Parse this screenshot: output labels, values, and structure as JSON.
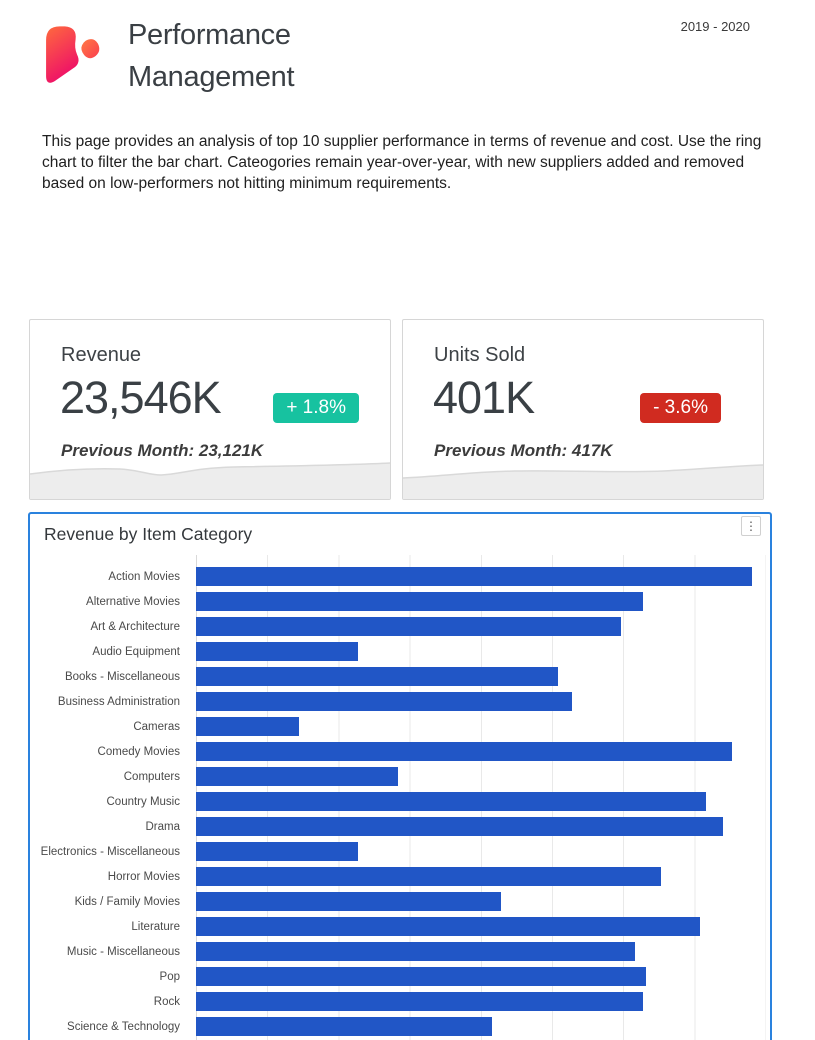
{
  "header": {
    "title": "Performance Management",
    "date_range": "2019 - 2020",
    "logo_icon": "brand-blob-logo",
    "logo_colors": {
      "top": "#ff6a3d",
      "bottom": "#ee0f68"
    }
  },
  "description": "This page provides an analysis of top 10 supplier performance in terms of revenue and cost. Use the ring chart to filter the bar chart. Cateogories remain year-over-year, with new suppliers added and removed based on low-performers not hitting minimum requirements.",
  "kpi_cards": [
    {
      "title": "Revenue",
      "value": "23,546K",
      "change_label": "+ 1.8%",
      "change_direction": "up",
      "change_color": "#17c2a0",
      "previous_label": "Previous Month: 23,121K"
    },
    {
      "title": "Units Sold",
      "value": "401K",
      "change_label": "- 3.6%",
      "change_direction": "down",
      "change_color": "#d02b20",
      "previous_label": "Previous Month: 417K"
    }
  ],
  "chart_panel": {
    "title": "Revenue by Item Category",
    "menu_icon": "kebab-menu-icon",
    "menu_glyph": "⋮",
    "border_color": "#2a82de"
  },
  "chart_data": {
    "type": "bar",
    "orientation": "horizontal",
    "title": "Revenue by Item Category",
    "categories": [
      "Action Movies",
      "Alternative Movies",
      "Art & Architecture",
      "Audio Equipment",
      "Books - Miscellaneous",
      "Business Administration",
      "Cameras",
      "Comedy Movies",
      "Computers",
      "Country Music",
      "Drama",
      "Electronics - Miscellaneous",
      "Horror Movies",
      "Kids / Family Movies",
      "Literature",
      "Music - Miscellaneous",
      "Pop",
      "Rock",
      "Science & Technology"
    ],
    "values": [
      97.5,
      78.5,
      74.5,
      28.5,
      63.5,
      66,
      18,
      94,
      35.5,
      89.5,
      92.5,
      28.5,
      81.5,
      53.5,
      88.5,
      77,
      79,
      78.5,
      52
    ],
    "values_unit": "percent of x-axis width (axis tick labels not visible in view)",
    "bar_color": "#2156c6",
    "grid": true,
    "gridline_color": "#e9e9e9",
    "x_axis_labels_visible": false,
    "legend": false
  },
  "colors": {
    "title_text": "#3a3f44",
    "body_text": "#202020",
    "card_border": "#d6d6d6",
    "wave_fill": "#ededed",
    "wave_stroke": "#d9d9d9",
    "positive": "#17c2a0",
    "negative": "#d02b20",
    "bar_blue": "#2156c6",
    "panel_border": "#2a82de"
  }
}
